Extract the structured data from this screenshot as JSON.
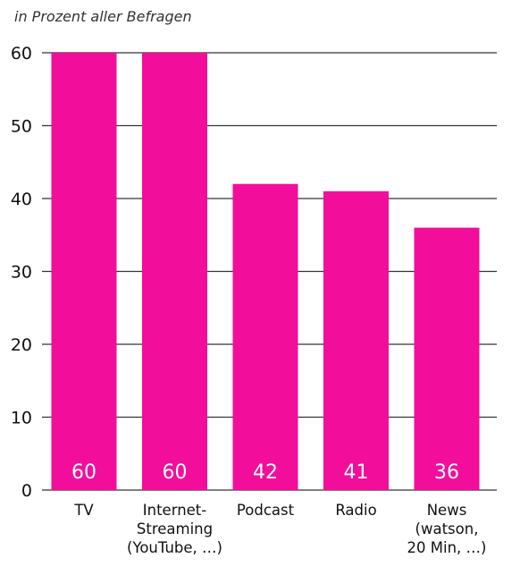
{
  "subtitle": "in Prozent aller Befragen",
  "colors": {
    "bar": "#f20d9a",
    "grid": "#333333",
    "label": "#ffffff"
  },
  "chart_data": {
    "type": "bar",
    "categories": [
      "TV",
      "Internet-\nStreaming\n(YouTube, …)",
      "Podcast",
      "Radio",
      "News\n(watson,\n20 Min, …)"
    ],
    "values": [
      60,
      60,
      42,
      41,
      36
    ],
    "data_labels": [
      "60",
      "60",
      "42",
      "41",
      "36"
    ],
    "y_ticks": [
      0,
      10,
      20,
      30,
      40,
      50,
      60
    ],
    "ylim": [
      0,
      60
    ],
    "grid": true,
    "legend": "none"
  }
}
